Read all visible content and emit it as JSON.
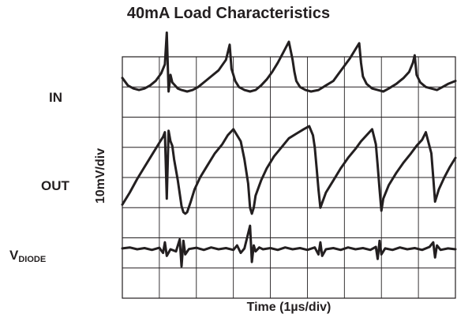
{
  "chart_data": {
    "type": "line",
    "title": "40mA Load Characteristics",
    "xlabel": "Time (1µs/div)",
    "ylabel": "10mV/div",
    "grid": true,
    "divisions": {
      "x": 9,
      "y": 8
    },
    "x_range_div": [
      0,
      9
    ],
    "y_range_div": [
      0,
      8
    ],
    "channels": [
      {
        "label": "IN",
        "label_sub": ""
      },
      {
        "label": "OUT",
        "label_sub": ""
      },
      {
        "label": "V",
        "label_sub": "DIODE"
      }
    ],
    "series": [
      {
        "name": "IN",
        "x": [
          0,
          0.15,
          0.3,
          0.45,
          0.6,
          0.75,
          0.9,
          1.05,
          1.15,
          1.2,
          1.25,
          1.3,
          1.35,
          1.5,
          1.6,
          1.75,
          1.9,
          2.05,
          2.2,
          2.4,
          2.6,
          2.8,
          2.9,
          2.95,
          3.0,
          3.05,
          3.15,
          3.3,
          3.45,
          3.6,
          3.75,
          3.9,
          4.05,
          4.2,
          4.35,
          4.5,
          4.6,
          4.65,
          4.7,
          4.8,
          4.95,
          5.1,
          5.3,
          5.5,
          5.7,
          5.85,
          6.0,
          6.15,
          6.3,
          6.4,
          6.45,
          6.5,
          6.6,
          6.75,
          6.9,
          7.05,
          7.2,
          7.4,
          7.6,
          7.75,
          7.85,
          7.9,
          7.95,
          8.05,
          8.2,
          8.35,
          8.5,
          8.65,
          8.8,
          9.0
        ],
        "values": [
          7.3,
          7.05,
          6.95,
          6.9,
          6.95,
          7.05,
          7.2,
          7.45,
          7.75,
          8.8,
          6.85,
          7.4,
          7.15,
          6.95,
          6.9,
          6.85,
          6.9,
          7.0,
          7.15,
          7.35,
          7.55,
          7.9,
          8.4,
          7.6,
          7.4,
          7.2,
          7.0,
          6.9,
          6.85,
          6.9,
          7.05,
          7.25,
          7.5,
          7.8,
          8.15,
          8.5,
          7.9,
          7.5,
          7.2,
          7.0,
          6.9,
          6.85,
          6.9,
          7.05,
          7.2,
          7.45,
          7.7,
          7.95,
          8.25,
          8.45,
          7.8,
          7.35,
          7.1,
          6.95,
          6.9,
          6.85,
          6.95,
          7.1,
          7.3,
          7.5,
          7.8,
          8.05,
          7.4,
          7.15,
          7.0,
          6.95,
          6.9,
          7.0,
          7.1,
          7.2
        ]
      },
      {
        "name": "OUT",
        "x": [
          0,
          0.2,
          0.4,
          0.6,
          0.8,
          1.0,
          1.1,
          1.15,
          1.2,
          1.25,
          1.3,
          1.35,
          1.4,
          1.5,
          1.6,
          1.65,
          1.7,
          1.75,
          1.85,
          1.95,
          2.1,
          2.3,
          2.5,
          2.7,
          2.85,
          3.0,
          3.2,
          3.3,
          3.4,
          3.45,
          3.5,
          3.55,
          3.6,
          3.75,
          3.9,
          4.1,
          4.3,
          4.5,
          4.7,
          4.9,
          5.05,
          5.15,
          5.2,
          5.25,
          5.3,
          5.35,
          5.5,
          5.7,
          5.9,
          6.1,
          6.3,
          6.45,
          6.6,
          6.75,
          6.85,
          6.9,
          6.95,
          7.0,
          7.05,
          7.2,
          7.4,
          7.6,
          7.8,
          7.95,
          8.1,
          8.2,
          8.35,
          8.4,
          8.45,
          8.55,
          8.7,
          8.85,
          9.0
        ],
        "values": [
          3.1,
          3.5,
          3.95,
          4.35,
          4.75,
          5.15,
          5.35,
          5.5,
          3.3,
          5.55,
          5.2,
          5.05,
          4.6,
          3.9,
          3.05,
          2.85,
          2.8,
          2.85,
          3.2,
          3.6,
          4.0,
          4.4,
          4.8,
          5.1,
          5.4,
          5.6,
          5.2,
          4.6,
          3.8,
          3.0,
          2.8,
          3.0,
          3.4,
          3.9,
          4.3,
          4.7,
          5.0,
          5.3,
          5.45,
          5.6,
          5.7,
          5.4,
          5.0,
          4.3,
          3.6,
          3.0,
          3.5,
          3.9,
          4.3,
          4.65,
          4.95,
          5.2,
          5.4,
          5.6,
          5.1,
          4.4,
          3.6,
          2.9,
          3.3,
          3.75,
          4.15,
          4.5,
          4.8,
          5.05,
          5.25,
          5.5,
          4.8,
          4.0,
          3.2,
          3.6,
          4.0,
          4.35,
          4.65
        ]
      },
      {
        "name": "VDIODE",
        "x": [
          0,
          0.2,
          0.4,
          0.6,
          0.8,
          1.0,
          1.1,
          1.15,
          1.2,
          1.3,
          1.45,
          1.55,
          1.6,
          1.65,
          1.7,
          1.8,
          2.0,
          2.2,
          2.4,
          2.6,
          2.8,
          3.0,
          3.1,
          3.2,
          3.3,
          3.45,
          3.5,
          3.55,
          3.6,
          3.7,
          3.8,
          4.0,
          4.2,
          4.4,
          4.6,
          4.8,
          5.0,
          5.2,
          5.3,
          5.35,
          5.4,
          5.5,
          5.7,
          5.9,
          6.1,
          6.3,
          6.5,
          6.7,
          6.85,
          6.9,
          6.95,
          7.0,
          7.1,
          7.3,
          7.5,
          7.7,
          7.9,
          8.1,
          8.3,
          8.4,
          8.45,
          8.5,
          8.6,
          8.8,
          9.0
        ],
        "values": [
          1.65,
          1.68,
          1.62,
          1.66,
          1.6,
          1.67,
          1.5,
          1.85,
          1.4,
          1.62,
          1.55,
          1.95,
          1.05,
          1.9,
          1.45,
          1.63,
          1.67,
          1.6,
          1.68,
          1.62,
          1.66,
          1.6,
          1.75,
          1.5,
          1.65,
          2.4,
          1.2,
          1.75,
          1.55,
          1.68,
          1.62,
          1.66,
          1.6,
          1.68,
          1.62,
          1.66,
          1.6,
          1.68,
          1.45,
          1.85,
          1.4,
          1.62,
          1.66,
          1.6,
          1.68,
          1.62,
          1.66,
          1.6,
          1.7,
          1.3,
          1.9,
          1.45,
          1.65,
          1.6,
          1.68,
          1.62,
          1.66,
          1.6,
          1.7,
          1.85,
          1.35,
          1.75,
          1.6,
          1.65,
          1.62
        ]
      }
    ]
  }
}
